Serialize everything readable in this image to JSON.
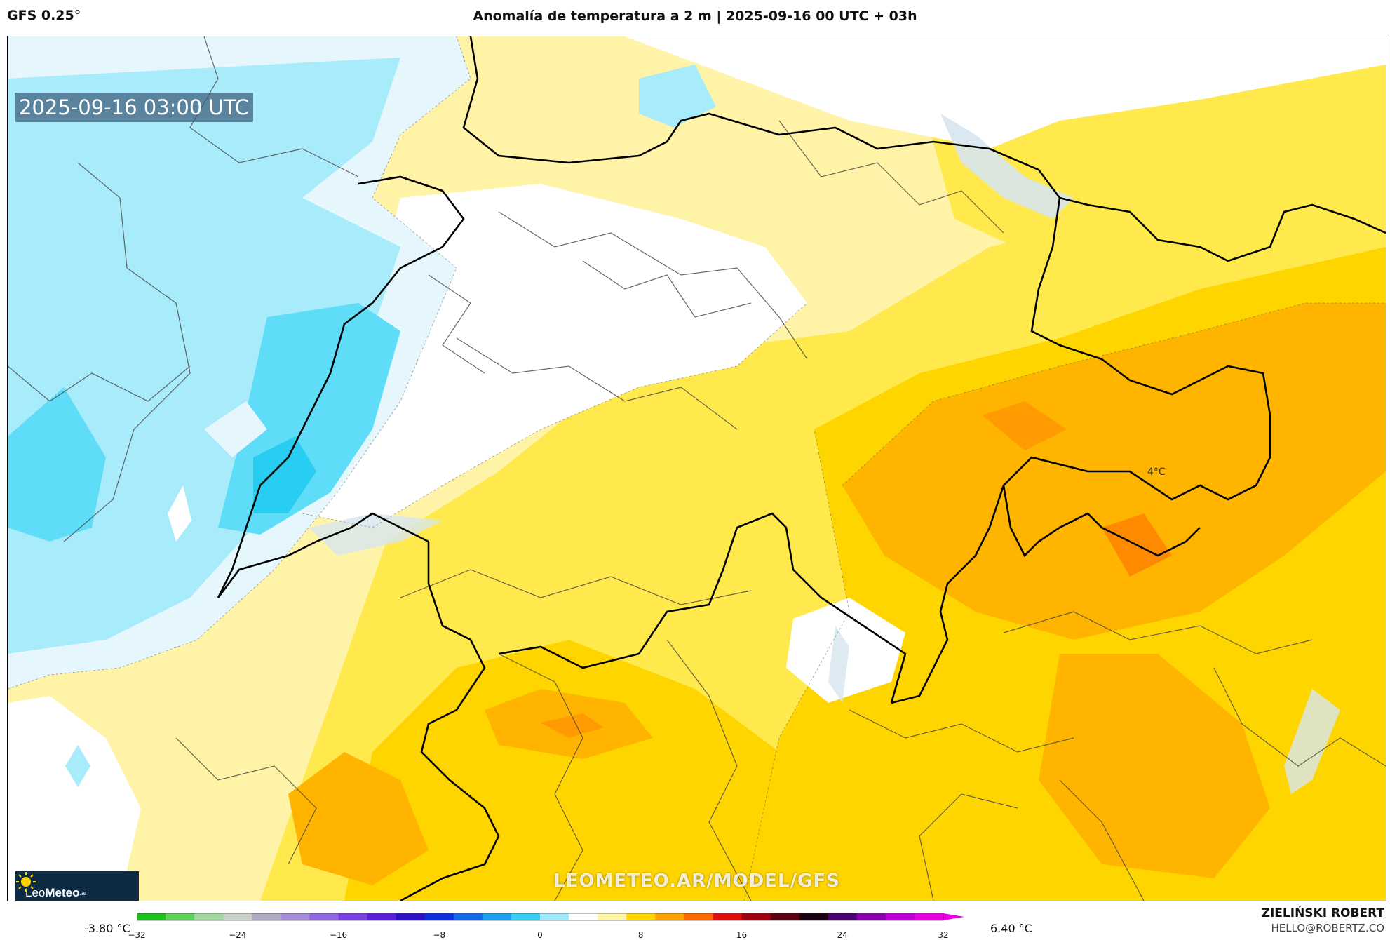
{
  "header": {
    "model": "GFS 0.25°",
    "title": "Anomalía de temperatura a 2 m | 2025-09-16 00 UTC + 03h"
  },
  "map": {
    "valid_time": "2025-09-16 03:00 UTC",
    "point_label": "4°C",
    "watermark": "LEOMETEO.AR/MODEL/GFS"
  },
  "logo": {
    "text_light": "Leo",
    "text_bold": "Meteo",
    "suffix": ".ar"
  },
  "legend": {
    "min_value": "-3.80 °C",
    "max_value": "6.40 °C",
    "ticks": [
      -32,
      -24,
      -16,
      -8,
      0,
      8,
      16,
      24,
      32
    ],
    "tick_labels": [
      "−32",
      "−24",
      "−16",
      "−8",
      "0",
      "8",
      "16",
      "24",
      "32"
    ],
    "range": [
      -32,
      32
    ],
    "colors": [
      "#1fbf1f",
      "#5fd05a",
      "#a3d9a0",
      "#c9cfc9",
      "#b0a9c4",
      "#a58ad8",
      "#9266e0",
      "#7a3fe0",
      "#5a20d8",
      "#2c10c8",
      "#0a2ee0",
      "#1268e8",
      "#1aa0ef",
      "#36cff3",
      "#9fe9fb",
      "#ffffff",
      "#fff3a8",
      "#ffd500",
      "#ffa200",
      "#ff6a00",
      "#e01010",
      "#a00010",
      "#5a0010",
      "#1a0010",
      "#4a0070",
      "#8a00b0",
      "#c000d8",
      "#e800e0"
    ]
  },
  "credits": {
    "name": "ZIELIŃSKI ROBERT",
    "email": "HELLO@ROBERTZ.CO"
  }
}
